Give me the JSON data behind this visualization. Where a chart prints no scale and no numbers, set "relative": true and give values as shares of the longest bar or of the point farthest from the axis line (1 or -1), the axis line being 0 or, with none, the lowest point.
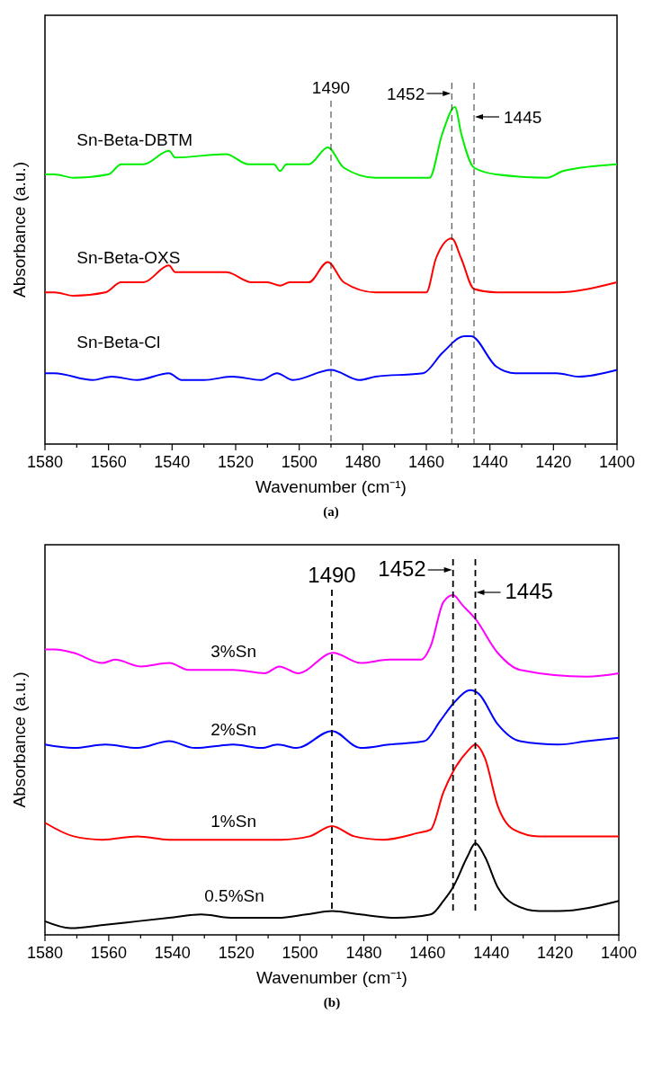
{
  "chart_data": [
    {
      "type": "line",
      "title": "(a)",
      "xlabel": "Wavenumber (cm⁻¹)",
      "ylabel": "Absorbance (a.u.)",
      "relative": true,
      "xlim": [
        1580,
        1400
      ],
      "xticks": [
        1580,
        {
          "value": 1570,
          "label": null
        },
        1560,
        {
          "value": 1550,
          "label": null
        },
        1540,
        {
          "value": 1530,
          "label": null
        },
        1520,
        {
          "value": 1510,
          "label": null
        },
        1500,
        {
          "value": 1490,
          "label": null
        },
        1480,
        {
          "value": 1470,
          "label": null
        },
        1460,
        {
          "value": 1450,
          "label": null
        },
        1440,
        {
          "value": 1430,
          "label": null
        },
        1420,
        {
          "value": 1410,
          "label": null
        },
        1400
      ],
      "grid": false,
      "line_style": "solid",
      "marker": "none",
      "ref_lines": [
        {
          "axis": "x",
          "value": 1490,
          "label": "1490",
          "line_style": "dashed",
          "color": "#333333"
        },
        {
          "axis": "x",
          "value": 1452,
          "label": "1452",
          "line_style": "dashed",
          "color": "#333333"
        },
        {
          "axis": "x",
          "value": 1445,
          "label": "1445",
          "line_style": "dashed",
          "color": "#333333"
        }
      ],
      "series": [
        {
          "name": "Sn-Beta-DBTM",
          "color": "#00ee00",
          "x": [
            1580,
            1577,
            1571,
            1560,
            1556,
            1549,
            1541,
            1539,
            1523,
            1516,
            1512,
            1508,
            1506,
            1504,
            1497,
            1491,
            1486,
            1476,
            1459,
            1455,
            1451,
            1449,
            1445,
            1438,
            1422,
            1417,
            1400
          ],
          "values": [
            0.8,
            0.8,
            0.79,
            0.8,
            0.83,
            0.83,
            0.87,
            0.85,
            0.86,
            0.83,
            0.83,
            0.83,
            0.81,
            0.83,
            0.83,
            0.88,
            0.82,
            0.79,
            0.79,
            0.92,
            1.0,
            0.92,
            0.82,
            0.8,
            0.79,
            0.81,
            0.83
          ]
        },
        {
          "name": "Sn-Beta-OXS",
          "color": "#ff0000",
          "x": [
            1580,
            1577,
            1571,
            1561,
            1556,
            1549,
            1541,
            1539,
            1523,
            1515,
            1510,
            1506,
            1503,
            1497,
            1491,
            1486,
            1476,
            1460,
            1457,
            1452,
            1449,
            1445,
            1438,
            1419,
            1400
          ],
          "values": [
            0.45,
            0.45,
            0.44,
            0.45,
            0.48,
            0.48,
            0.53,
            0.51,
            0.51,
            0.48,
            0.48,
            0.47,
            0.48,
            0.48,
            0.54,
            0.48,
            0.45,
            0.45,
            0.55,
            0.61,
            0.55,
            0.46,
            0.45,
            0.45,
            0.48
          ]
        },
        {
          "name": "Sn-Beta-Cl",
          "color": "#0000ff",
          "x": [
            1580,
            1577,
            1565,
            1559,
            1551,
            1541,
            1537,
            1530,
            1521,
            1512,
            1507,
            1502,
            1490,
            1481,
            1476,
            1461,
            1455,
            1448,
            1446,
            1438,
            1432,
            1419,
            1412,
            1400
          ],
          "values": [
            0.21,
            0.21,
            0.19,
            0.2,
            0.19,
            0.21,
            0.19,
            0.19,
            0.2,
            0.19,
            0.21,
            0.19,
            0.22,
            0.19,
            0.2,
            0.21,
            0.27,
            0.32,
            0.32,
            0.23,
            0.21,
            0.21,
            0.2,
            0.22
          ]
        }
      ]
    },
    {
      "type": "line",
      "title": "(b)",
      "xlabel": "Wavenumber (cm⁻¹)",
      "ylabel": "Absorbance (a.u.)",
      "relative": true,
      "xlim": [
        1580,
        1400
      ],
      "xticks": [
        1580,
        {
          "value": 1570,
          "label": null
        },
        1560,
        {
          "value": 1550,
          "label": null
        },
        1540,
        {
          "value": 1530,
          "label": null
        },
        1520,
        {
          "value": 1510,
          "label": null
        },
        1500,
        {
          "value": 1490,
          "label": null
        },
        1480,
        {
          "value": 1470,
          "label": null
        },
        1460,
        {
          "value": 1450,
          "label": null
        },
        1440,
        {
          "value": 1430,
          "label": null
        },
        1420,
        {
          "value": 1410,
          "label": null
        },
        1400
      ],
      "grid": false,
      "line_style": "solid",
      "marker": "none",
      "ref_lines": [
        {
          "axis": "x",
          "value": 1490,
          "label": "1490",
          "line_style": "dashed",
          "color": "#000000"
        },
        {
          "axis": "x",
          "value": 1452,
          "label": "1452",
          "line_style": "dashed",
          "color": "#000000"
        },
        {
          "axis": "x",
          "value": 1445,
          "label": "1445",
          "line_style": "dashed",
          "color": "#000000"
        }
      ],
      "series": [
        {
          "name": "3%Sn",
          "color": "#ff00ff",
          "x": [
            1580,
            1577,
            1571,
            1562,
            1558,
            1550,
            1541,
            1535,
            1521,
            1511,
            1506.5,
            1500.6,
            1489.6,
            1481,
            1472,
            1462,
            1459,
            1455,
            1452,
            1449,
            1445,
            1438,
            1431,
            1410,
            1400
          ],
          "values": [
            0.84,
            0.84,
            0.83,
            0.8,
            0.81,
            0.79,
            0.8,
            0.78,
            0.78,
            0.77,
            0.79,
            0.77,
            0.83,
            0.8,
            0.81,
            0.81,
            0.85,
            0.98,
            1.0,
            0.97,
            0.93,
            0.83,
            0.78,
            0.76,
            0.77
          ]
        },
        {
          "name": "2%Sn",
          "color": "#0000ff",
          "x": [
            1580,
            1571,
            1561,
            1551,
            1541,
            1533,
            1521,
            1512,
            1507,
            1501,
            1490,
            1481,
            1472,
            1461,
            1456,
            1452,
            1446.5,
            1444,
            1438,
            1431,
            1419,
            1410,
            1400
          ],
          "values": [
            0.56,
            0.55,
            0.56,
            0.55,
            0.57,
            0.55,
            0.56,
            0.55,
            0.56,
            0.55,
            0.6,
            0.55,
            0.56,
            0.57,
            0.63,
            0.68,
            0.72,
            0.71,
            0.62,
            0.57,
            0.56,
            0.57,
            0.58
          ]
        },
        {
          "name": "1%Sn",
          "color": "#ff0000",
          "x": [
            1580,
            1571,
            1562,
            1551,
            1541,
            1521,
            1506,
            1497,
            1490,
            1483,
            1474,
            1463,
            1459,
            1455,
            1452,
            1447.5,
            1445,
            1442,
            1438,
            1433,
            1425,
            1400
          ],
          "values": [
            0.33,
            0.29,
            0.28,
            0.29,
            0.28,
            0.28,
            0.28,
            0.29,
            0.32,
            0.29,
            0.28,
            0.3,
            0.31,
            0.42,
            0.48,
            0.54,
            0.56,
            0.52,
            0.38,
            0.31,
            0.29,
            0.29
          ]
        },
        {
          "name": "0.5%Sn",
          "color": "#000000",
          "x": [
            1580,
            1572,
            1561,
            1551,
            1541,
            1531,
            1521,
            1507,
            1498,
            1490,
            1481,
            1470,
            1459,
            1455,
            1452,
            1447.5,
            1445,
            1442,
            1438,
            1433,
            1425,
            1419,
            1400
          ],
          "values": [
            0.04,
            0.02,
            0.03,
            0.04,
            0.05,
            0.06,
            0.05,
            0.05,
            0.06,
            0.07,
            0.06,
            0.05,
            0.06,
            0.1,
            0.14,
            0.23,
            0.27,
            0.23,
            0.14,
            0.09,
            0.07,
            0.07,
            0.1
          ]
        }
      ]
    }
  ]
}
